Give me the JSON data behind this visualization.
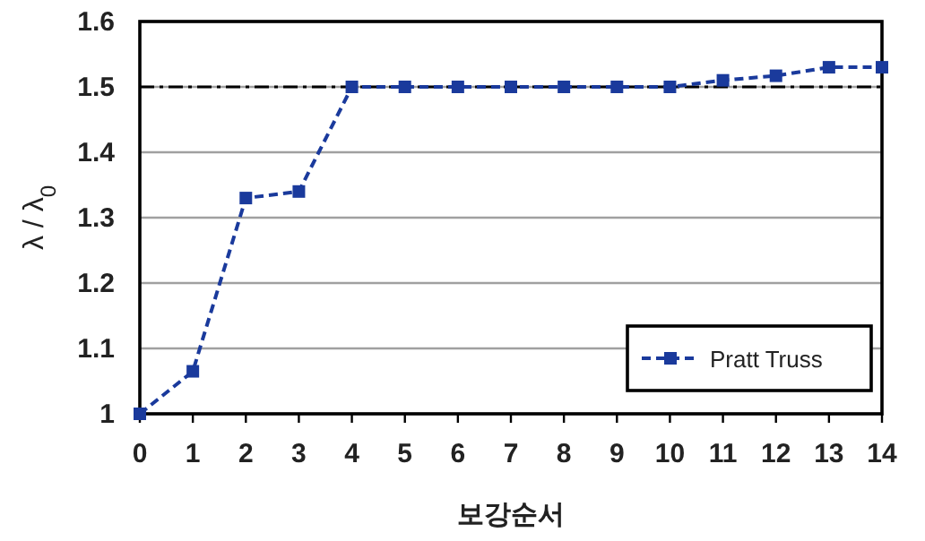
{
  "chart_data": {
    "type": "line",
    "xlabel": "보강순서",
    "ylabel": "λ / λ$_{0}$",
    "x": [
      0,
      1,
      2,
      3,
      4,
      5,
      6,
      7,
      8,
      9,
      10,
      11,
      12,
      13,
      14
    ],
    "series": [
      {
        "name": "Pratt Truss",
        "color": "#1a3a9c",
        "values": [
          1.0,
          1.065,
          1.33,
          1.34,
          1.5,
          1.5,
          1.5,
          1.5,
          1.5,
          1.5,
          1.5,
          1.51,
          1.517,
          1.53,
          1.53
        ]
      }
    ],
    "xlim": [
      0,
      14
    ],
    "xticks": [
      0,
      1,
      2,
      3,
      4,
      5,
      6,
      7,
      8,
      9,
      10,
      11,
      12,
      13,
      14
    ],
    "ylim": [
      1,
      1.6
    ],
    "yticks": [
      1,
      1.1,
      1.2,
      1.3,
      1.4,
      1.5,
      1.6
    ],
    "ref_lines": [
      {
        "axis": "y",
        "value": 1.5,
        "color": "#000000",
        "line_style": "dashdot"
      }
    ],
    "grid": "y",
    "legend": "bottom right",
    "marker": "square",
    "line_style": "dashed"
  }
}
